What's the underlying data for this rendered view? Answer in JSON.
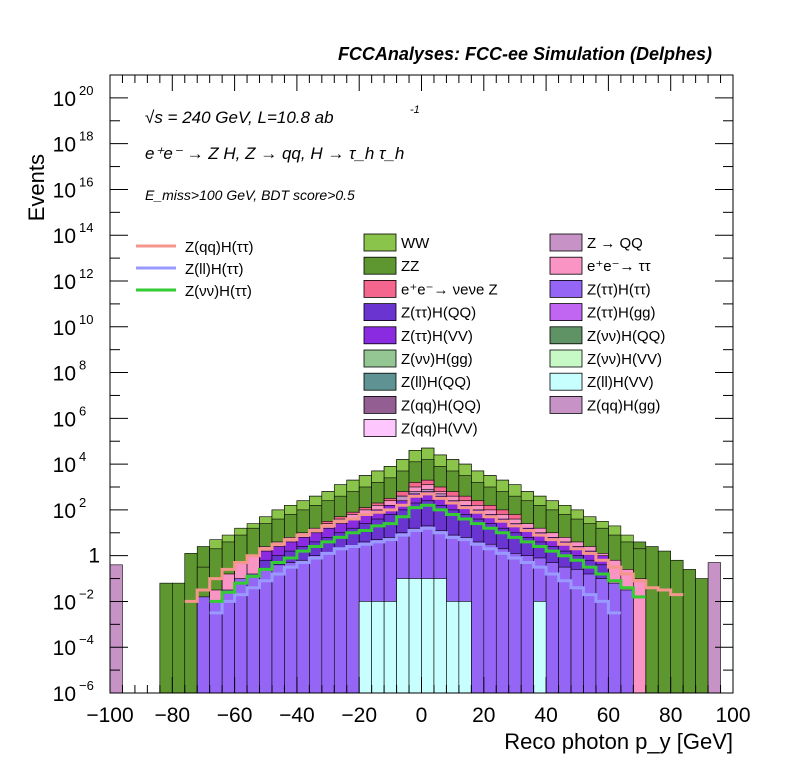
{
  "chart_data": {
    "type": "area",
    "title": "FCCAnalyses: FCC-ee Simulation (Delphes)",
    "xlabel": "Reco photon p_y [GeV]",
    "ylabel": "Events",
    "xlim": [
      -100,
      100
    ],
    "ylim": [
      1e-06,
      1e+21
    ],
    "y_scale": "log",
    "x_ticks": [
      "−100",
      "−80",
      "−60",
      "−40",
      "−20",
      "0",
      "20",
      "40",
      "60",
      "80",
      "100"
    ],
    "y_ticks": [
      {
        "mant": "10",
        "exp": "−6",
        "val": 1e-06
      },
      {
        "mant": "10",
        "exp": "−4",
        "val": 0.0001
      },
      {
        "mant": "10",
        "exp": "−2",
        "val": 0.01
      },
      {
        "mant": "1",
        "exp": "",
        "val": 1
      },
      {
        "mant": "10",
        "exp": "2",
        "val": 100.0
      },
      {
        "mant": "10",
        "exp": "4",
        "val": 10000.0
      },
      {
        "mant": "10",
        "exp": "6",
        "val": 1000000.0
      },
      {
        "mant": "10",
        "exp": "8",
        "val": 100000000.0
      },
      {
        "mant": "10",
        "exp": "10",
        "val": 10000000000.0
      },
      {
        "mant": "10",
        "exp": "12",
        "val": 1000000000000.0
      },
      {
        "mant": "10",
        "exp": "14",
        "val": 100000000000000.0
      },
      {
        "mant": "10",
        "exp": "16",
        "val": 1e+16
      },
      {
        "mant": "10",
        "exp": "18",
        "val": 1e+18
      },
      {
        "mant": "10",
        "exp": "20",
        "val": 1e+20
      }
    ],
    "annotations": {
      "energy": "√s = 240 GeV, L=10.8 ab",
      "energy_sup": "-1",
      "process": "e⁺e⁻ → Z H, Z → qq, H → τ_h τ_h",
      "selection": "E_miss>100 GeV, BDT score>0.5"
    },
    "signal_legend": [
      {
        "label": "Z(qq)H(ττ)",
        "color": "#f4968c"
      },
      {
        "label": "Z(ll)H(ττ)",
        "color": "#9999ff"
      },
      {
        "label": "Z(νν)H(ττ)",
        "color": "#33cc33"
      }
    ],
    "background_legend": [
      {
        "label": "WW",
        "color": "#8ac44a"
      },
      {
        "label": "Z → QQ",
        "color": "#c793c7"
      },
      {
        "label": "ZZ",
        "color": "#5e9630"
      },
      {
        "label": "e⁺e⁻→ ττ",
        "color": "#f994c5"
      },
      {
        "label": "e⁺e⁻→ νeνe Z",
        "color": "#f5668e"
      },
      {
        "label": "Z(ττ)H(ττ)",
        "color": "#9566f5"
      },
      {
        "label": "Z(ττ)H(QQ)",
        "color": "#6a34d1"
      },
      {
        "label": "Z(ττ)H(gg)",
        "color": "#c166f2"
      },
      {
        "label": "Z(ττ)H(VV)",
        "color": "#8a2be2"
      },
      {
        "label": "Z(νν)H(QQ)",
        "color": "#5f9366"
      },
      {
        "label": "Z(νν)H(gg)",
        "color": "#93c693"
      },
      {
        "label": "Z(νν)H(VV)",
        "color": "#c7f9c7"
      },
      {
        "label": "Z(ll)H(QQ)",
        "color": "#5f9393"
      },
      {
        "label": "Z(ll)H(VV)",
        "color": "#c7ffff"
      },
      {
        "label": "Z(qq)H(QQ)",
        "color": "#935f93"
      },
      {
        "label": "Z(qq)H(gg)",
        "color": "#c793c7"
      },
      {
        "label": "Z(qq)H(VV)",
        "color": "#fdc7fd"
      }
    ],
    "bin_edges": [
      -100,
      -96,
      -92,
      -88,
      -84,
      -80,
      -76,
      -72,
      -68,
      -64,
      -60,
      -56,
      -52,
      -48,
      -44,
      -40,
      -36,
      -32,
      -28,
      -24,
      -20,
      -16,
      -12,
      -8,
      -4,
      0,
      4,
      8,
      12,
      16,
      20,
      24,
      28,
      32,
      36,
      40,
      44,
      48,
      52,
      56,
      60,
      64,
      68,
      72,
      76,
      80,
      84,
      88,
      92,
      96,
      100
    ],
    "stack_components_log10": [
      {
        "name": "Z(ll)H(VV)",
        "color": "#c7ffff",
        "values": [
          null,
          null,
          null,
          null,
          null,
          null,
          null,
          null,
          null,
          null,
          null,
          null,
          null,
          null,
          null,
          null,
          null,
          -6,
          -6,
          -6,
          -2,
          -2,
          -2,
          -1,
          -1,
          -1,
          -1,
          -2,
          -2,
          -6,
          -6,
          -6,
          -6,
          -6,
          -2,
          -6,
          -6,
          -6,
          -6,
          -6,
          null,
          null,
          null,
          null,
          null,
          null,
          null,
          null,
          null,
          null
        ]
      },
      {
        "name": "Z(ττ)H(ττ)",
        "color": "#9566f5",
        "values": [
          null,
          null,
          null,
          null,
          null,
          null,
          null,
          -1.8,
          -2,
          -1.5,
          -1,
          -0.8,
          -0.6,
          -0.4,
          -0.3,
          -0.2,
          0,
          0.1,
          0.3,
          0.4,
          0.6,
          0.7,
          0.8,
          1.0,
          1.2,
          1.3,
          1.1,
          0.9,
          0.8,
          0.6,
          0.5,
          0.3,
          0.1,
          0,
          -0.1,
          -0.3,
          -0.5,
          -0.6,
          -0.8,
          -1.0,
          -1.2,
          -1.5,
          null,
          null,
          null,
          null,
          null,
          null,
          null,
          null
        ]
      },
      {
        "name": "Z(ll)H(QQ)",
        "color": "#5f9393",
        "values": [
          null,
          null,
          null,
          null,
          null,
          null,
          null,
          null,
          null,
          null,
          null,
          null,
          null,
          null,
          null,
          null,
          null,
          null,
          null,
          null,
          null,
          null,
          null,
          0.4,
          0.5,
          0.4,
          0.2,
          null,
          null,
          null,
          null,
          null,
          null,
          null,
          null,
          null,
          null,
          null,
          null,
          null,
          null,
          null,
          null,
          null,
          null,
          null,
          null,
          null,
          null,
          null
        ]
      },
      {
        "name": "Z(ττ)H(QQ)",
        "color": "#6a34d1",
        "values": [
          null,
          null,
          null,
          null,
          null,
          null,
          null,
          null,
          null,
          null,
          null,
          null,
          -0.2,
          0,
          0.2,
          0.4,
          0.6,
          0.8,
          1.0,
          1.2,
          1.4,
          1.6,
          1.8,
          2.0,
          2.3,
          2.4,
          2.2,
          2.0,
          1.8,
          1.6,
          1.4,
          1.2,
          1.0,
          0.8,
          0.6,
          0.4,
          0.2,
          0,
          -0.2,
          -0.4,
          null,
          null,
          null,
          null,
          null,
          null,
          null,
          null,
          null,
          null
        ]
      },
      {
        "name": "Z(ττ)H(VV)",
        "color": "#8a2be2",
        "values": [
          null,
          null,
          null,
          null,
          null,
          null,
          null,
          null,
          null,
          null,
          null,
          null,
          0.2,
          0.4,
          0.6,
          0.8,
          1.0,
          1.2,
          1.4,
          1.6,
          1.8,
          2.0,
          2.2,
          2.4,
          2.7,
          2.8,
          2.6,
          2.4,
          2.2,
          2.0,
          1.8,
          1.6,
          1.4,
          1.2,
          1.0,
          0.8,
          0.6,
          0.4,
          0.2,
          0.0,
          null,
          null,
          null,
          null,
          null,
          null,
          null,
          null,
          null,
          null
        ]
      },
      {
        "name": "Z(qq)H(gg)",
        "color": "#c793c7",
        "values": [
          null,
          null,
          null,
          null,
          null,
          null,
          null,
          null,
          null,
          null,
          null,
          null,
          null,
          null,
          null,
          null,
          null,
          null,
          null,
          null,
          null,
          null,
          null,
          2.6,
          2.8,
          2.9,
          2.7,
          null,
          null,
          null,
          null,
          null,
          null,
          null,
          null,
          null,
          null,
          null,
          null,
          null,
          null,
          null,
          null,
          null,
          null,
          null,
          null,
          null,
          null,
          null
        ]
      },
      {
        "name": "e⁺e⁻→ ττ",
        "color": "#f994c5",
        "values": [
          null,
          null,
          null,
          null,
          null,
          null,
          null,
          -2,
          -1.5,
          -0.8,
          -0.3,
          0,
          0.4,
          0.6,
          0.8,
          1.0,
          1.2,
          1.4,
          1.6,
          1.8,
          2.0,
          2.2,
          2.4,
          2.6,
          3.0,
          3.1,
          2.8,
          2.6,
          2.4,
          2.2,
          2.0,
          1.8,
          1.6,
          1.4,
          1.2,
          1.0,
          0.8,
          0.6,
          0.4,
          0.1,
          -0.2,
          -0.6,
          -1.0,
          null,
          null,
          null,
          null,
          null,
          null,
          null
        ]
      },
      {
        "name": "e⁺e⁻→ νeνe Z",
        "color": "#f5668e",
        "values": [
          null,
          null,
          null,
          null,
          null,
          null,
          null,
          null,
          null,
          null,
          null,
          null,
          null,
          null,
          null,
          null,
          null,
          1.5,
          1.7,
          1.9,
          2.1,
          2.3,
          2.5,
          2.8,
          3.2,
          3.3,
          3.0,
          2.8,
          2.6,
          2.4,
          2.2,
          2.0,
          1.8,
          null,
          null,
          null,
          null,
          null,
          null,
          null,
          null,
          null,
          null,
          null,
          null,
          null,
          null,
          null,
          null,
          null
        ]
      },
      {
        "name": "ZZ",
        "color": "#5e9630",
        "values": [
          null,
          null,
          null,
          null,
          null,
          null,
          null,
          -0.5,
          0.3,
          0.6,
          0.9,
          1.2,
          1.4,
          1.6,
          1.8,
          2.0,
          2.2,
          2.4,
          2.6,
          2.8,
          3.0,
          3.2,
          3.4,
          3.7,
          4.1,
          4.2,
          3.9,
          3.7,
          3.5,
          3.2,
          3.0,
          2.8,
          2.6,
          2.4,
          2.2,
          2.0,
          1.8,
          1.6,
          1.4,
          1.2,
          0.9,
          0.6,
          0.3,
          null,
          null,
          null,
          null,
          null,
          null,
          null
        ]
      },
      {
        "name": "WW",
        "color": "#8ac44a",
        "values": [
          null,
          null,
          null,
          null,
          null,
          null,
          null,
          null,
          null,
          null,
          null,
          null,
          1.7,
          2.0,
          2.2,
          2.4,
          2.6,
          2.8,
          3.1,
          3.3,
          3.5,
          3.7,
          3.9,
          4.2,
          4.6,
          4.7,
          4.4,
          4.2,
          4.0,
          3.7,
          3.5,
          3.3,
          3.1,
          2.8,
          2.6,
          2.4,
          2.2,
          2.0,
          1.7,
          null,
          null,
          null,
          null,
          null,
          null,
          null,
          null,
          null,
          null,
          null
        ]
      }
    ],
    "outer_envelope_log10": [
      -0.4,
      null,
      null,
      null,
      -1.2,
      -1.2,
      0.1,
      0.4,
      0.7,
      0.9,
      1.2,
      1.4,
      1.7,
      2.0,
      2.2,
      2.4,
      2.6,
      2.8,
      3.1,
      3.3,
      3.5,
      3.7,
      3.9,
      4.2,
      4.6,
      4.7,
      4.4,
      4.2,
      4.0,
      3.7,
      3.5,
      3.3,
      3.1,
      2.8,
      2.6,
      2.4,
      2.2,
      2.0,
      1.7,
      1.5,
      1.3,
      0.9,
      0.6,
      0.4,
      0.2,
      -0.2,
      -0.6,
      -1.0,
      -0.3,
      null
    ],
    "signal_lines_log10": [
      {
        "name": "Z(qq)H(ττ)",
        "values": [
          null,
          null,
          null,
          null,
          null,
          null,
          -2.0,
          -1.5,
          -1.0,
          -0.6,
          -0.3,
          0,
          0.3,
          0.5,
          0.7,
          0.9,
          1.1,
          1.3,
          1.5,
          1.6,
          1.8,
          1.9,
          2.0,
          2.2,
          2.6,
          2.7,
          2.5,
          2.3,
          2.1,
          1.9,
          1.7,
          1.5,
          1.3,
          1.1,
          0.9,
          0.7,
          0.5,
          0.3,
          0.1,
          -0.2,
          -0.5,
          -0.8,
          -1.1,
          -1.4,
          -1.5,
          -1.7,
          null,
          null,
          null,
          null
        ]
      },
      {
        "name": "Z(ll)H(ττ)",
        "values": [
          null,
          null,
          null,
          null,
          null,
          null,
          null,
          null,
          -2.5,
          -2.0,
          -1.7,
          -1.4,
          -1.1,
          -0.8,
          -0.5,
          -0.3,
          -0.1,
          0.1,
          0.3,
          0.4,
          0.5,
          0.6,
          0.7,
          0.9,
          1.1,
          1.2,
          1.0,
          0.8,
          0.7,
          0.5,
          0.3,
          0.1,
          -0.1,
          -0.3,
          -0.5,
          -0.8,
          -1.1,
          -1.4,
          -1.7,
          -2.0,
          -2.5,
          null,
          null,
          null,
          null,
          null,
          null,
          null,
          null,
          null
        ]
      },
      {
        "name": "Z(νν)H(ττ)",
        "values": [
          null,
          null,
          null,
          null,
          null,
          null,
          null,
          null,
          -2.0,
          -1.6,
          -1.2,
          -0.9,
          -0.6,
          -0.3,
          -0.1,
          0.2,
          0.4,
          0.6,
          0.8,
          1.0,
          1.1,
          1.3,
          1.4,
          1.7,
          2.1,
          2.2,
          2.0,
          1.8,
          1.6,
          1.4,
          1.2,
          1.0,
          0.8,
          0.6,
          0.4,
          0.2,
          0,
          -0.2,
          -0.5,
          -0.8,
          -1.1,
          -1.4,
          -1.8,
          null,
          null,
          null,
          null,
          null,
          null,
          null
        ]
      }
    ]
  }
}
